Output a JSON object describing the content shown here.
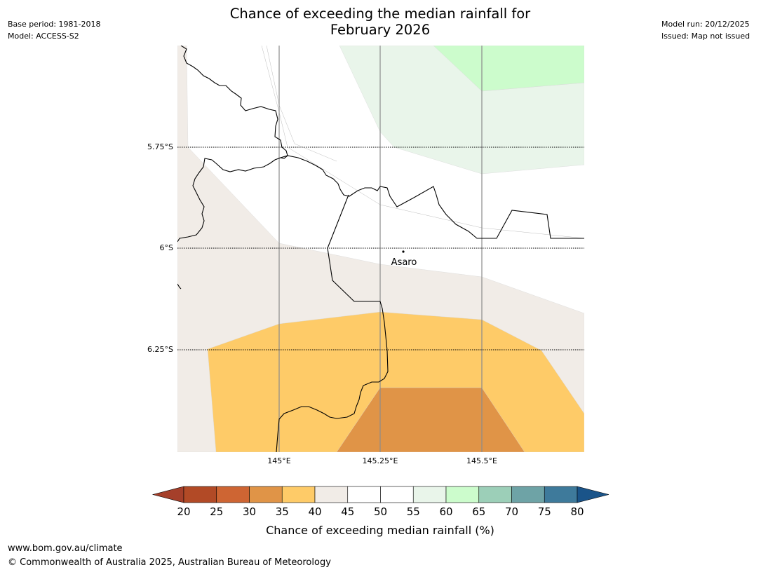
{
  "header": {
    "base_period": "Base period: 1981-2018",
    "model": "Model: ACCESS-S2",
    "model_run": "Model run: 20/12/2025",
    "issued": "Issued: Map not issued",
    "title_line1": "Chance of exceeding the median rainfall for",
    "title_line2": "February 2026"
  },
  "map": {
    "lat_labels": [
      "5.75°S",
      "6°S",
      "6.25°S"
    ],
    "lon_labels": [
      "145°E",
      "145.25°E",
      "145.5°E"
    ],
    "place": {
      "name": "Asaro"
    },
    "category_colors": {
      "35-40": "#fecb68",
      "30-35": "#e09447",
      "40-45": "#f1ece7",
      "55-60": "#e9f5ea",
      "60-65": "#ccfccc"
    }
  },
  "colorbar": {
    "ticks": [
      "20",
      "25",
      "30",
      "35",
      "40",
      "45",
      "50",
      "55",
      "60",
      "65",
      "70",
      "75",
      "80"
    ],
    "colors": [
      "#a53f2a",
      "#b24a26",
      "#ce6533",
      "#e09447",
      "#fecb68",
      "#f1ece7",
      "#ffffff",
      "#ffffff",
      "#e9f5ea",
      "#ccfccc",
      "#9ccfb8",
      "#6ea3a6",
      "#3e7a9b",
      "#1a5489"
    ],
    "label": "Chance of exceeding median rainfall (%)"
  },
  "footer": {
    "url": "www.bom.gov.au/climate",
    "copyright": "© Commonwealth of Australia 2025, Australian Bureau of Meteorology"
  }
}
